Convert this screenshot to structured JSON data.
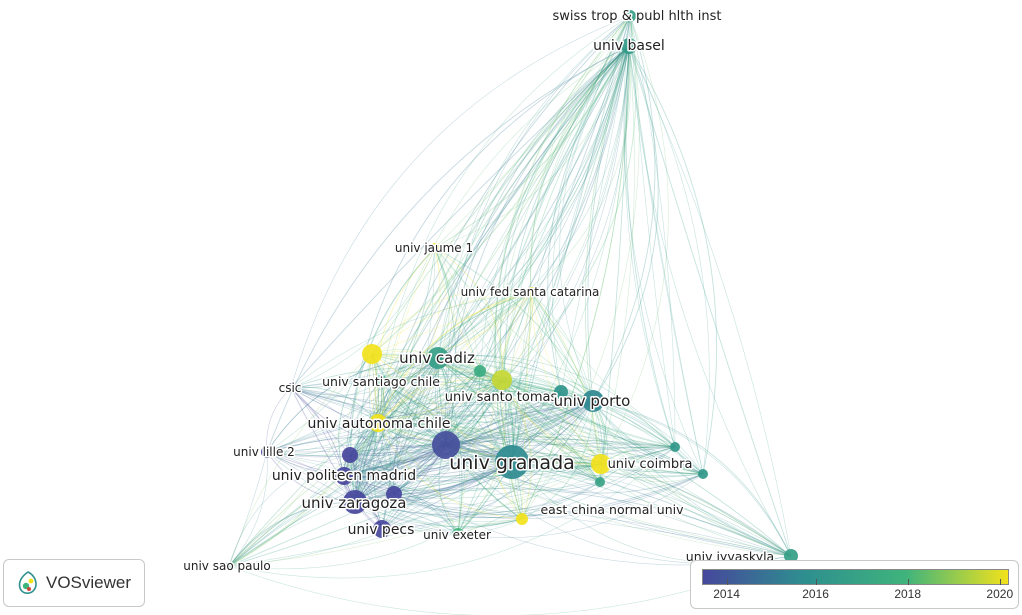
{
  "app": {
    "brand": "VOSviewer"
  },
  "colors": {
    "y2014": "#46479c",
    "y2016": "#2e8f8f",
    "y2018": "#3fb47c",
    "y2020": "#f2e21c"
  },
  "legend": {
    "ticks": [
      "2014",
      "2016",
      "2018",
      "2020"
    ]
  },
  "nodes": [
    {
      "id": "swiss",
      "label": "swiss trop & publ hlth inst",
      "year": 2016.8
    },
    {
      "id": "basel",
      "label": "univ basel",
      "year": 2016.6
    },
    {
      "id": "jaume",
      "label": "univ jaume 1",
      "year": 2020
    },
    {
      "id": "santacat",
      "label": "univ fed santa catarina",
      "year": 2020
    },
    {
      "id": "cadiz",
      "label": "univ cadiz",
      "year": 2016.8
    },
    {
      "id": "yelA",
      "label": "",
      "year": 2020
    },
    {
      "id": "csic",
      "label": "csic",
      "year": 2014
    },
    {
      "id": "santiago",
      "label": "univ santiago chile",
      "year": 2017.5
    },
    {
      "id": "santotomas",
      "label": "univ santo tomas",
      "year": 2019.5
    },
    {
      "id": "greenB",
      "label": "",
      "year": 2017.5
    },
    {
      "id": "porto",
      "label": "univ porto",
      "year": 2015.8
    },
    {
      "id": "tealC",
      "label": "",
      "year": 2016.3
    },
    {
      "id": "autonoma",
      "label": "univ autonoma chile",
      "year": 2020
    },
    {
      "id": "purpleBig",
      "label": "",
      "year": 2014.2
    },
    {
      "id": "granada",
      "label": "univ granada",
      "year": 2015.9
    },
    {
      "id": "lille",
      "label": "univ lille 2",
      "year": 2014
    },
    {
      "id": "politecn",
      "label": "univ politecn madrid",
      "year": 2014
    },
    {
      "id": "zaragoza",
      "label": "univ zaragoza",
      "year": 2014
    },
    {
      "id": "pecs",
      "label": "univ pecs",
      "year": 2014
    },
    {
      "id": "exeter",
      "label": "univ exeter",
      "year": 2018
    },
    {
      "id": "coimbra",
      "label": "univ coimbra",
      "year": 2020
    },
    {
      "id": "greenD",
      "label": "",
      "year": 2017
    },
    {
      "id": "tealE",
      "label": "",
      "year": 2016.5
    },
    {
      "id": "tealF",
      "label": "",
      "year": 2016.5
    },
    {
      "id": "eastchina",
      "label": "east china normal univ",
      "year": 2020
    },
    {
      "id": "jyvaskyla",
      "label": "univ jyvaskyla",
      "year": 2016.8
    },
    {
      "id": "saopaulo",
      "label": "univ sao paulo",
      "year": 2017.5
    },
    {
      "id": "purpleG",
      "label": "",
      "year": 2014
    },
    {
      "id": "purpleH",
      "label": "",
      "year": 2014
    }
  ]
}
